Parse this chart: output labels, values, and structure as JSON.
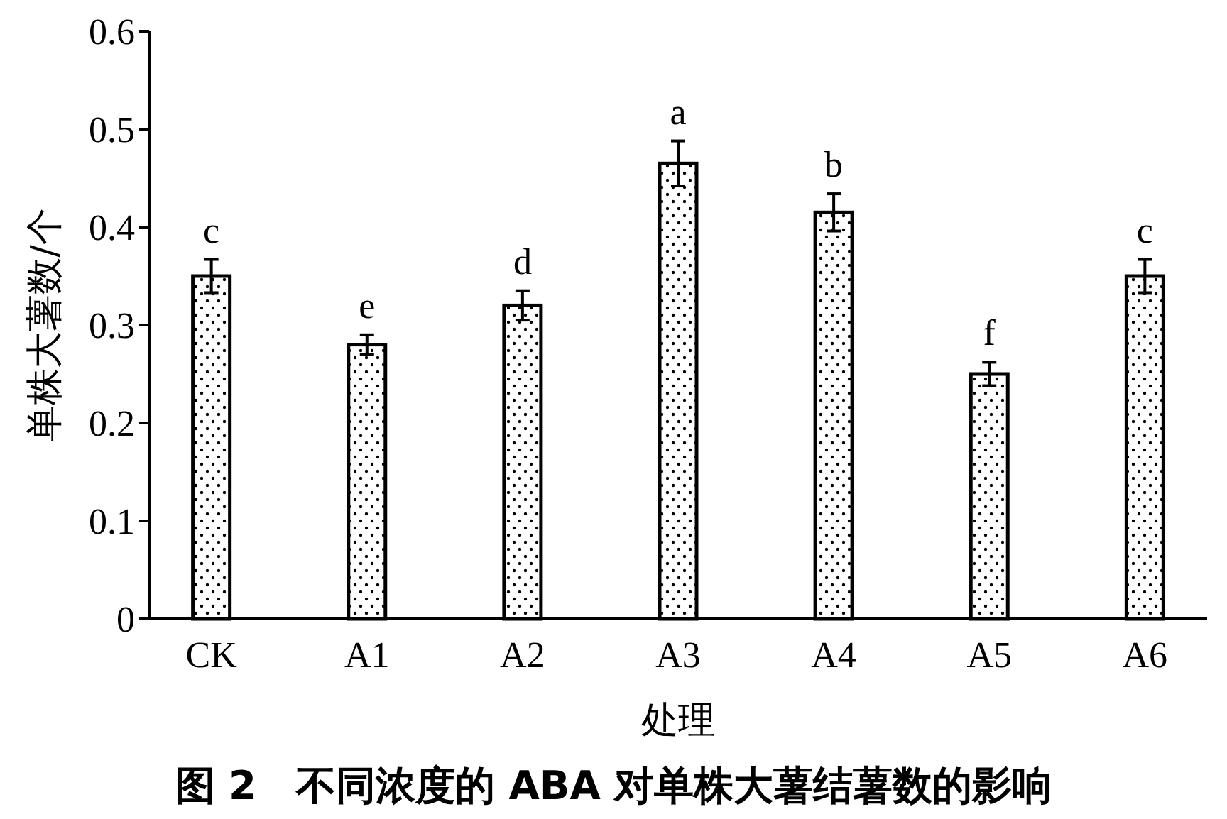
{
  "chart_data": {
    "type": "bar",
    "title": "图 2　不同浓度的 ABA 对单株大薯结薯数的影响",
    "xlabel": "处理",
    "ylabel": "单株大薯数/个",
    "categories": [
      "CK",
      "A1",
      "A2",
      "A3",
      "A4",
      "A5",
      "A6"
    ],
    "values": [
      0.35,
      0.28,
      0.32,
      0.465,
      0.415,
      0.25,
      0.35
    ],
    "errors": [
      0.017,
      0.01,
      0.015,
      0.023,
      0.019,
      0.012,
      0.017
    ],
    "color": "#000000",
    "ylim": [
      0,
      0.6
    ],
    "yticks": [
      0,
      0.1,
      0.2,
      0.3,
      0.4,
      0.5,
      0.6
    ],
    "grid": false,
    "annotations": [
      {
        "text": "c",
        "x": "CK",
        "y": 0.367
      },
      {
        "text": "e",
        "x": "A1",
        "y": 0.29
      },
      {
        "text": "d",
        "x": "A2",
        "y": 0.335
      },
      {
        "text": "a",
        "x": "A3",
        "y": 0.488
      },
      {
        "text": "b",
        "x": "A4",
        "y": 0.434
      },
      {
        "text": "f",
        "x": "A5",
        "y": 0.262
      },
      {
        "text": "c",
        "x": "A6",
        "y": 0.367
      }
    ]
  }
}
